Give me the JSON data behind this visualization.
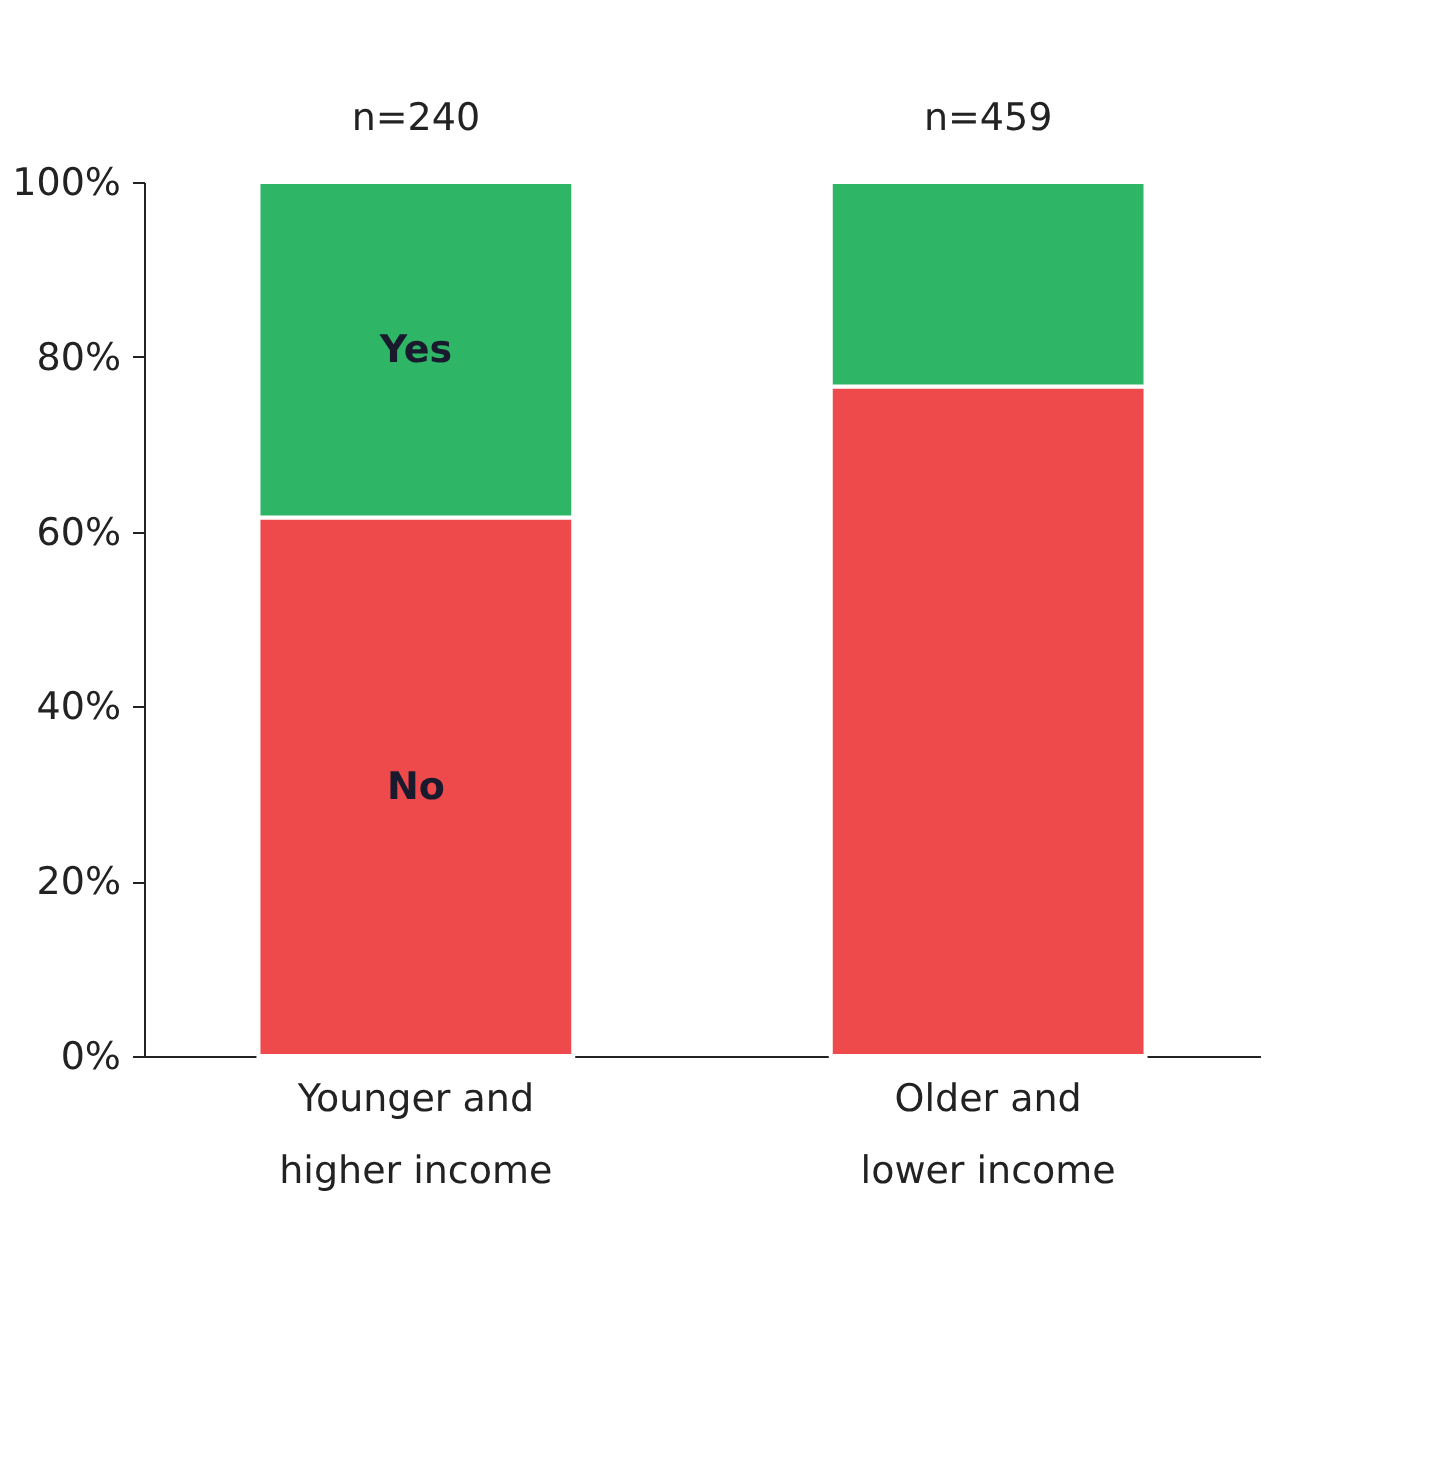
{
  "chart_data": {
    "type": "bar",
    "stacked": true,
    "grid": false,
    "categories": [
      "Younger and higher income",
      "Older and lower income"
    ],
    "series": [
      {
        "name": "No",
        "color": "#ef4a4b",
        "values": [
          61.6,
          76.6
        ]
      },
      {
        "name": "Yes",
        "color": "#2eb566",
        "values": [
          38.4,
          23.4
        ]
      }
    ],
    "ylim": [
      0,
      100
    ],
    "yticks": [
      {
        "value": 0,
        "label": "0%"
      },
      {
        "value": 20,
        "label": "20%"
      },
      {
        "value": 40,
        "label": "40%"
      },
      {
        "value": 60,
        "label": "60%"
      },
      {
        "value": 80,
        "label": "80%"
      },
      {
        "value": 100,
        "label": "100%"
      }
    ],
    "annotations": [
      "n=240",
      "n=459"
    ]
  }
}
